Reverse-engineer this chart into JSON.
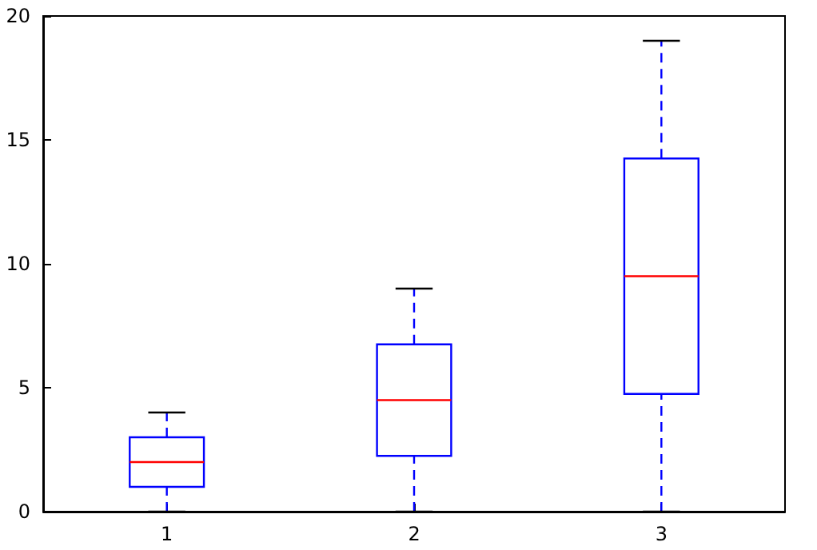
{
  "chart_data": {
    "type": "box",
    "categories": [
      "1",
      "2",
      "3"
    ],
    "boxes": [
      {
        "low": 0,
        "q1": 1,
        "median": 2,
        "q3": 3,
        "high": 4
      },
      {
        "low": 0,
        "q1": 2.25,
        "median": 4.5,
        "q3": 6.75,
        "high": 9
      },
      {
        "low": 0,
        "q1": 4.75,
        "median": 9.5,
        "q3": 14.25,
        "high": 19
      }
    ],
    "color": "#0000ff",
    "ylim": [
      0,
      20
    ],
    "yticks": [
      0,
      5,
      10,
      15,
      20
    ],
    "grid": false
  }
}
